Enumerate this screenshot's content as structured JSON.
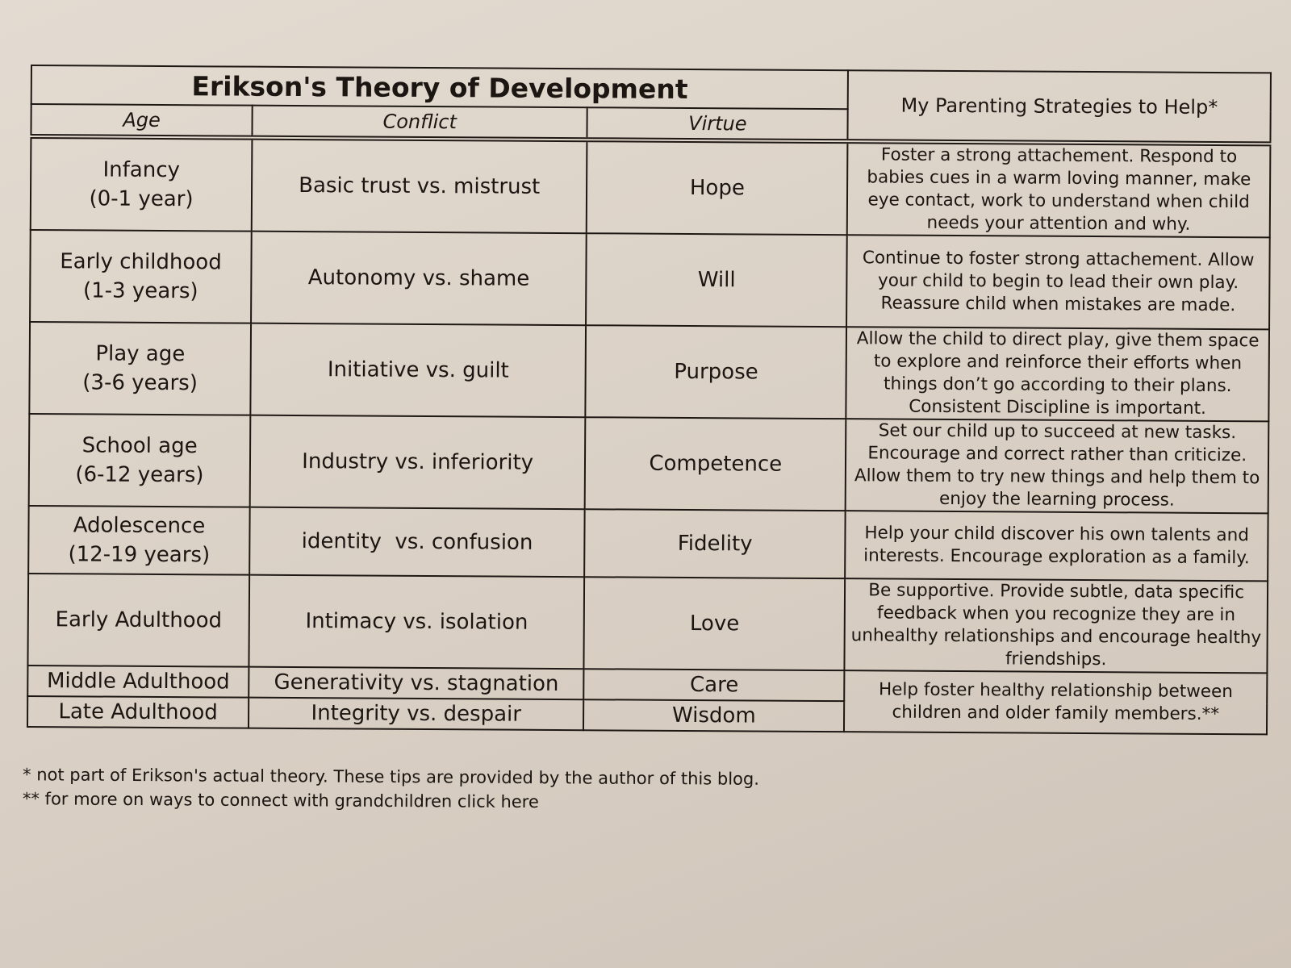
{
  "title": "Erikson's Theory of Development",
  "headers": {
    "age": "Age",
    "conflict": "Conflict",
    "virtue": "Virtue",
    "strategies": "My Parenting Strategies to Help*"
  },
  "rows": [
    {
      "age": "Infancy",
      "age_range": "(0-1 year)",
      "conflict": "Basic trust vs. mistrust",
      "virtue": "Hope",
      "strategy": "Foster a strong attachement.  Respond to babies cues in a warm loving manner, make eye contact, work to understand when child needs your attention and why."
    },
    {
      "age": "Early childhood",
      "age_range": "(1-3 years)",
      "conflict": "Autonomy vs. shame",
      "virtue": "Will",
      "strategy": "Continue to foster strong attachement. Allow your child to begin to lead their own play. Reassure child when mistakes are made."
    },
    {
      "age": "Play age",
      "age_range": "(3-6 years)",
      "conflict": "Initiative vs. guilt",
      "virtue": "Purpose",
      "strategy": "Allow the child to direct play, give them space to explore and reinforce their efforts when things don’t go according to their plans. Consistent Discipline is important."
    },
    {
      "age": "School age",
      "age_range": "(6-12 years)",
      "conflict": "Industry vs. inferiority",
      "virtue": "Competence",
      "strategy": "Set our child up to succeed at new tasks. Encourage and correct rather than criticize. Allow them to try new things and help them to enjoy the learning process."
    },
    {
      "age": "Adolescence",
      "age_range": "(12-19 years)",
      "conflict": "identity  vs. confusion",
      "virtue": "Fidelity",
      "strategy": "Help your child discover his own talents and interests.  Encourage exploration as a family."
    },
    {
      "age": "Early Adulthood",
      "conflict": "Intimacy vs. isolation",
      "virtue": "Love",
      "strategy": "Be supportive.  Provide subtle, data specific feedback when you recognize they are in unhealthy relationships and encourage healthy friendships."
    },
    {
      "age": "Middle Adulthood",
      "conflict": "Generativity vs. stagnation",
      "virtue": "Care",
      "strategy": "Help foster healthy relationship between children and older family members.**"
    },
    {
      "age": "Late Adulthood",
      "conflict": "Integrity vs. despair",
      "virtue": "Wisdom"
    }
  ],
  "footnotes": [
    "* not part of Erikson's actual theory. These tips are provided by the author of this blog.",
    "** for more on ways to connect with grandchildren click here"
  ]
}
